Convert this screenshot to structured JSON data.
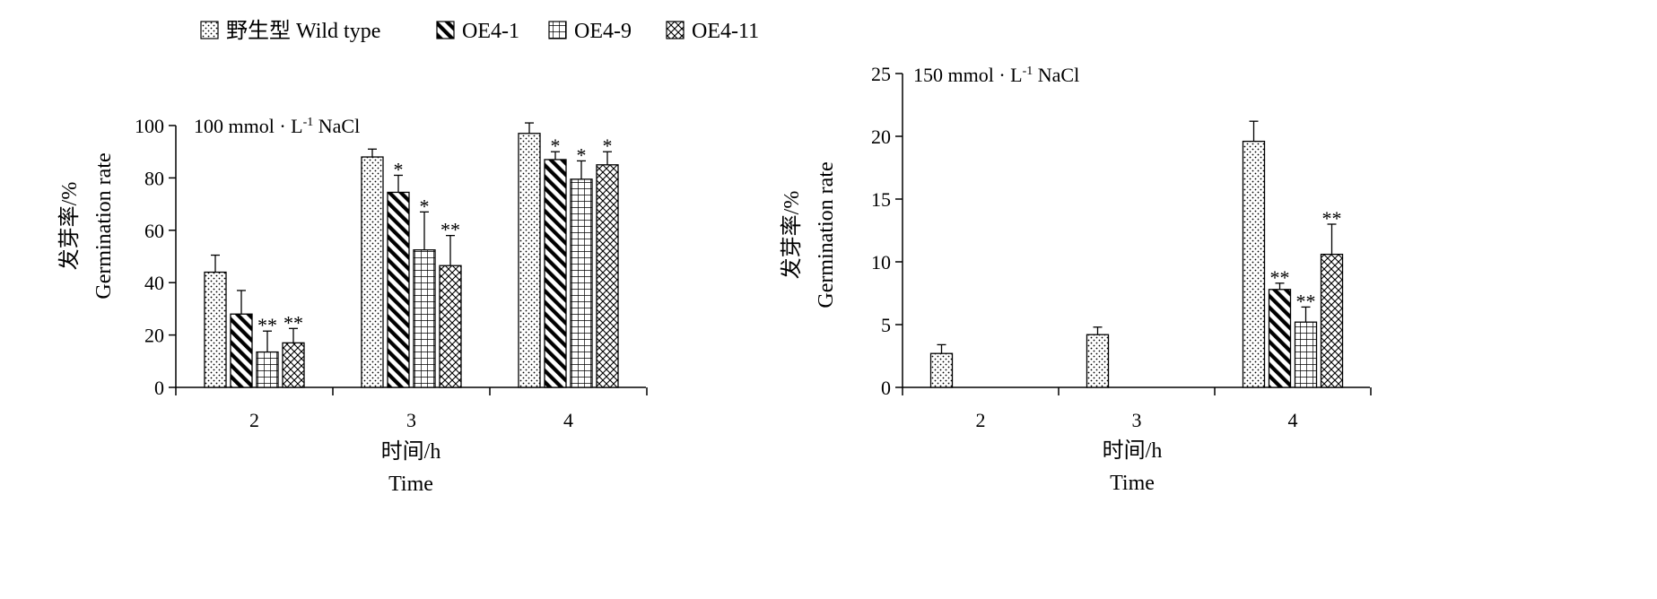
{
  "legend": {
    "items": [
      {
        "label": "野生型 Wild type",
        "pattern": "dots"
      },
      {
        "label": "OE4-1",
        "pattern": "diag"
      },
      {
        "label": "OE4-9",
        "pattern": "grid"
      },
      {
        "label": "OE4-11",
        "pattern": "crosshatch"
      }
    ]
  },
  "chart_data": [
    {
      "type": "bar",
      "annotation": "100 mmol · L-1 NaCl",
      "annotation_sup": "-1",
      "ylabel_cn": "发芽率/%",
      "ylabel_en": "Germination rate",
      "xlabel_cn": "时间/h",
      "xlabel_en": "Time",
      "categories": [
        "2",
        "3",
        "4"
      ],
      "ylim": [
        0,
        100
      ],
      "yticks": [
        0,
        20,
        40,
        60,
        80,
        100
      ],
      "series": [
        {
          "name": "野生型 Wild type",
          "values": [
            44,
            88,
            97
          ],
          "errors": [
            6.5,
            3,
            4
          ],
          "sig": [
            "",
            "",
            ""
          ]
        },
        {
          "name": "OE4-1",
          "values": [
            28,
            74.5,
            87
          ],
          "errors": [
            9,
            6.5,
            3
          ],
          "sig": [
            "",
            "*",
            "*"
          ]
        },
        {
          "name": "OE4-9",
          "values": [
            13.5,
            52.5,
            79.5
          ],
          "errors": [
            8,
            14.5,
            7
          ],
          "sig": [
            "**",
            "*",
            "*"
          ]
        },
        {
          "name": "OE4-11",
          "values": [
            17,
            46.5,
            85
          ],
          "errors": [
            5.5,
            11.5,
            5
          ],
          "sig": [
            "**",
            "**",
            "*"
          ]
        }
      ]
    },
    {
      "type": "bar",
      "annotation": "150 mmol · L-1 NaCl",
      "annotation_sup": "-1",
      "ylabel_cn": "发芽率/%",
      "ylabel_en": "Germination rate",
      "xlabel_cn": "时间/h",
      "xlabel_en": "Time",
      "categories": [
        "2",
        "3",
        "4"
      ],
      "ylim": [
        0,
        25
      ],
      "yticks": [
        0,
        5,
        10,
        15,
        20,
        25
      ],
      "series": [
        {
          "name": "野生型 Wild type",
          "values": [
            2.7,
            4.2,
            19.6
          ],
          "errors": [
            0.7,
            0.6,
            1.6
          ],
          "sig": [
            "",
            "",
            ""
          ]
        },
        {
          "name": "OE4-1",
          "values": [
            0,
            0,
            7.8
          ],
          "errors": [
            0,
            0,
            0.5
          ],
          "sig": [
            "",
            "",
            "**"
          ]
        },
        {
          "name": "OE4-9",
          "values": [
            0,
            0,
            5.2
          ],
          "errors": [
            0,
            0,
            1.2
          ],
          "sig": [
            "",
            "",
            "**"
          ]
        },
        {
          "name": "OE4-11",
          "values": [
            0,
            0,
            10.6
          ],
          "errors": [
            0,
            0,
            2.4
          ],
          "sig": [
            "",
            "",
            "**"
          ]
        }
      ]
    }
  ]
}
